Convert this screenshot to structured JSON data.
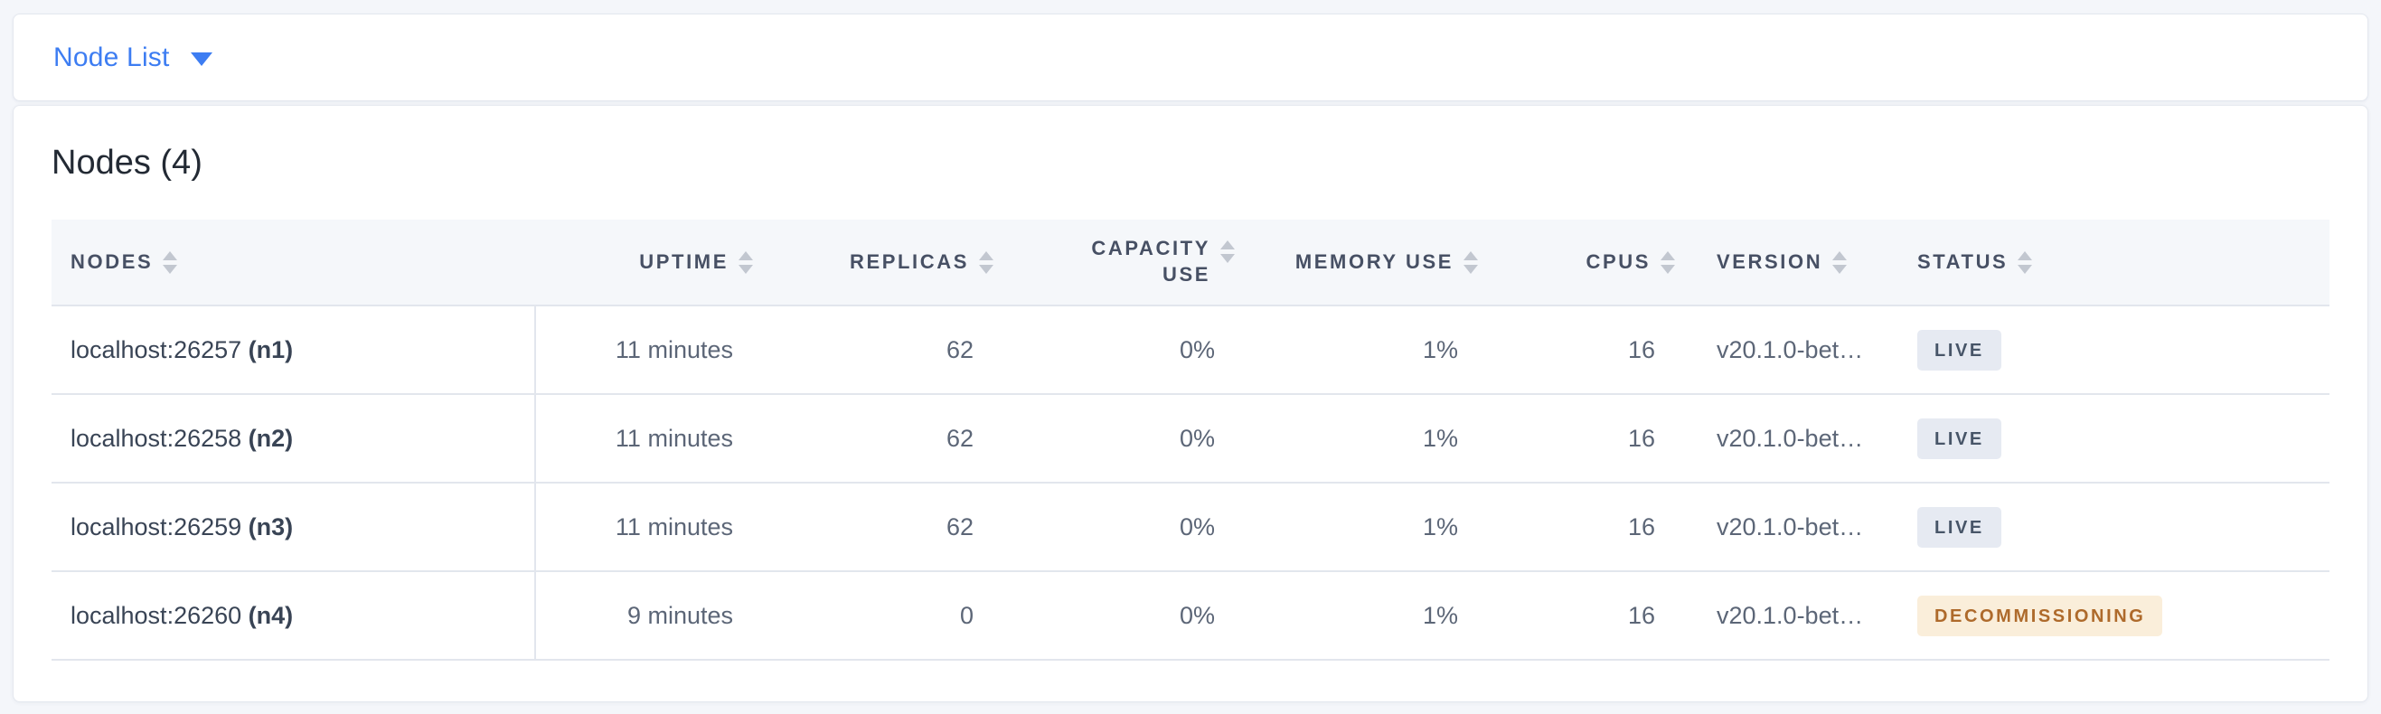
{
  "view_selector": {
    "label": "Node List"
  },
  "summary": {
    "title": "Nodes (4)"
  },
  "table": {
    "columns": [
      {
        "key": "nodes",
        "label": "NODES",
        "align": "left",
        "sortable": true
      },
      {
        "key": "uptime",
        "label": "UPTIME",
        "align": "right",
        "sortable": true
      },
      {
        "key": "replicas",
        "label": "REPLICAS",
        "align": "right",
        "sortable": true
      },
      {
        "key": "capacity_use",
        "label": "CAPACITY USE",
        "align": "right",
        "sortable": true
      },
      {
        "key": "memory_use",
        "label": "MEMORY USE",
        "align": "right",
        "sortable": true
      },
      {
        "key": "cpus",
        "label": "CPUS",
        "align": "right",
        "sortable": true
      },
      {
        "key": "version",
        "label": "VERSION",
        "align": "left",
        "sortable": true
      },
      {
        "key": "status",
        "label": "STATUS",
        "align": "left",
        "sortable": true
      }
    ],
    "rows": [
      {
        "address": "localhost:26257",
        "node_id": "(n1)",
        "uptime": "11 minutes",
        "replicas": "62",
        "capacity_use": "0%",
        "memory_use": "1%",
        "cpus": "16",
        "version": "v20.1.0-bet…",
        "status": "LIVE",
        "status_type": "live"
      },
      {
        "address": "localhost:26258",
        "node_id": "(n2)",
        "uptime": "11 minutes",
        "replicas": "62",
        "capacity_use": "0%",
        "memory_use": "1%",
        "cpus": "16",
        "version": "v20.1.0-bet…",
        "status": "LIVE",
        "status_type": "live"
      },
      {
        "address": "localhost:26259",
        "node_id": "(n3)",
        "uptime": "11 minutes",
        "replicas": "62",
        "capacity_use": "0%",
        "memory_use": "1%",
        "cpus": "16",
        "version": "v20.1.0-bet…",
        "status": "LIVE",
        "status_type": "live"
      },
      {
        "address": "localhost:26260",
        "node_id": "(n4)",
        "uptime": "9 minutes",
        "replicas": "0",
        "capacity_use": "0%",
        "memory_use": "1%",
        "cpus": "16",
        "version": "v20.1.0-bet…",
        "status": "DECOMMISSIONING",
        "status_type": "decommissioning"
      }
    ]
  },
  "colors": {
    "accent_blue": "#3d7df2",
    "page_bg": "#f4f6fa",
    "card_bg": "#ffffff",
    "table_header_bg": "#f5f7fa",
    "table_header_text": "#475064",
    "row_text": "#5c6677",
    "node_text": "#394455",
    "row_border": "#e2e6ed",
    "live_badge_bg": "#e6eaf2",
    "live_badge_text": "#475568",
    "decommissioning_badge_bg": "#faeeda",
    "decommissioning_badge_text": "#ae6a2b"
  }
}
